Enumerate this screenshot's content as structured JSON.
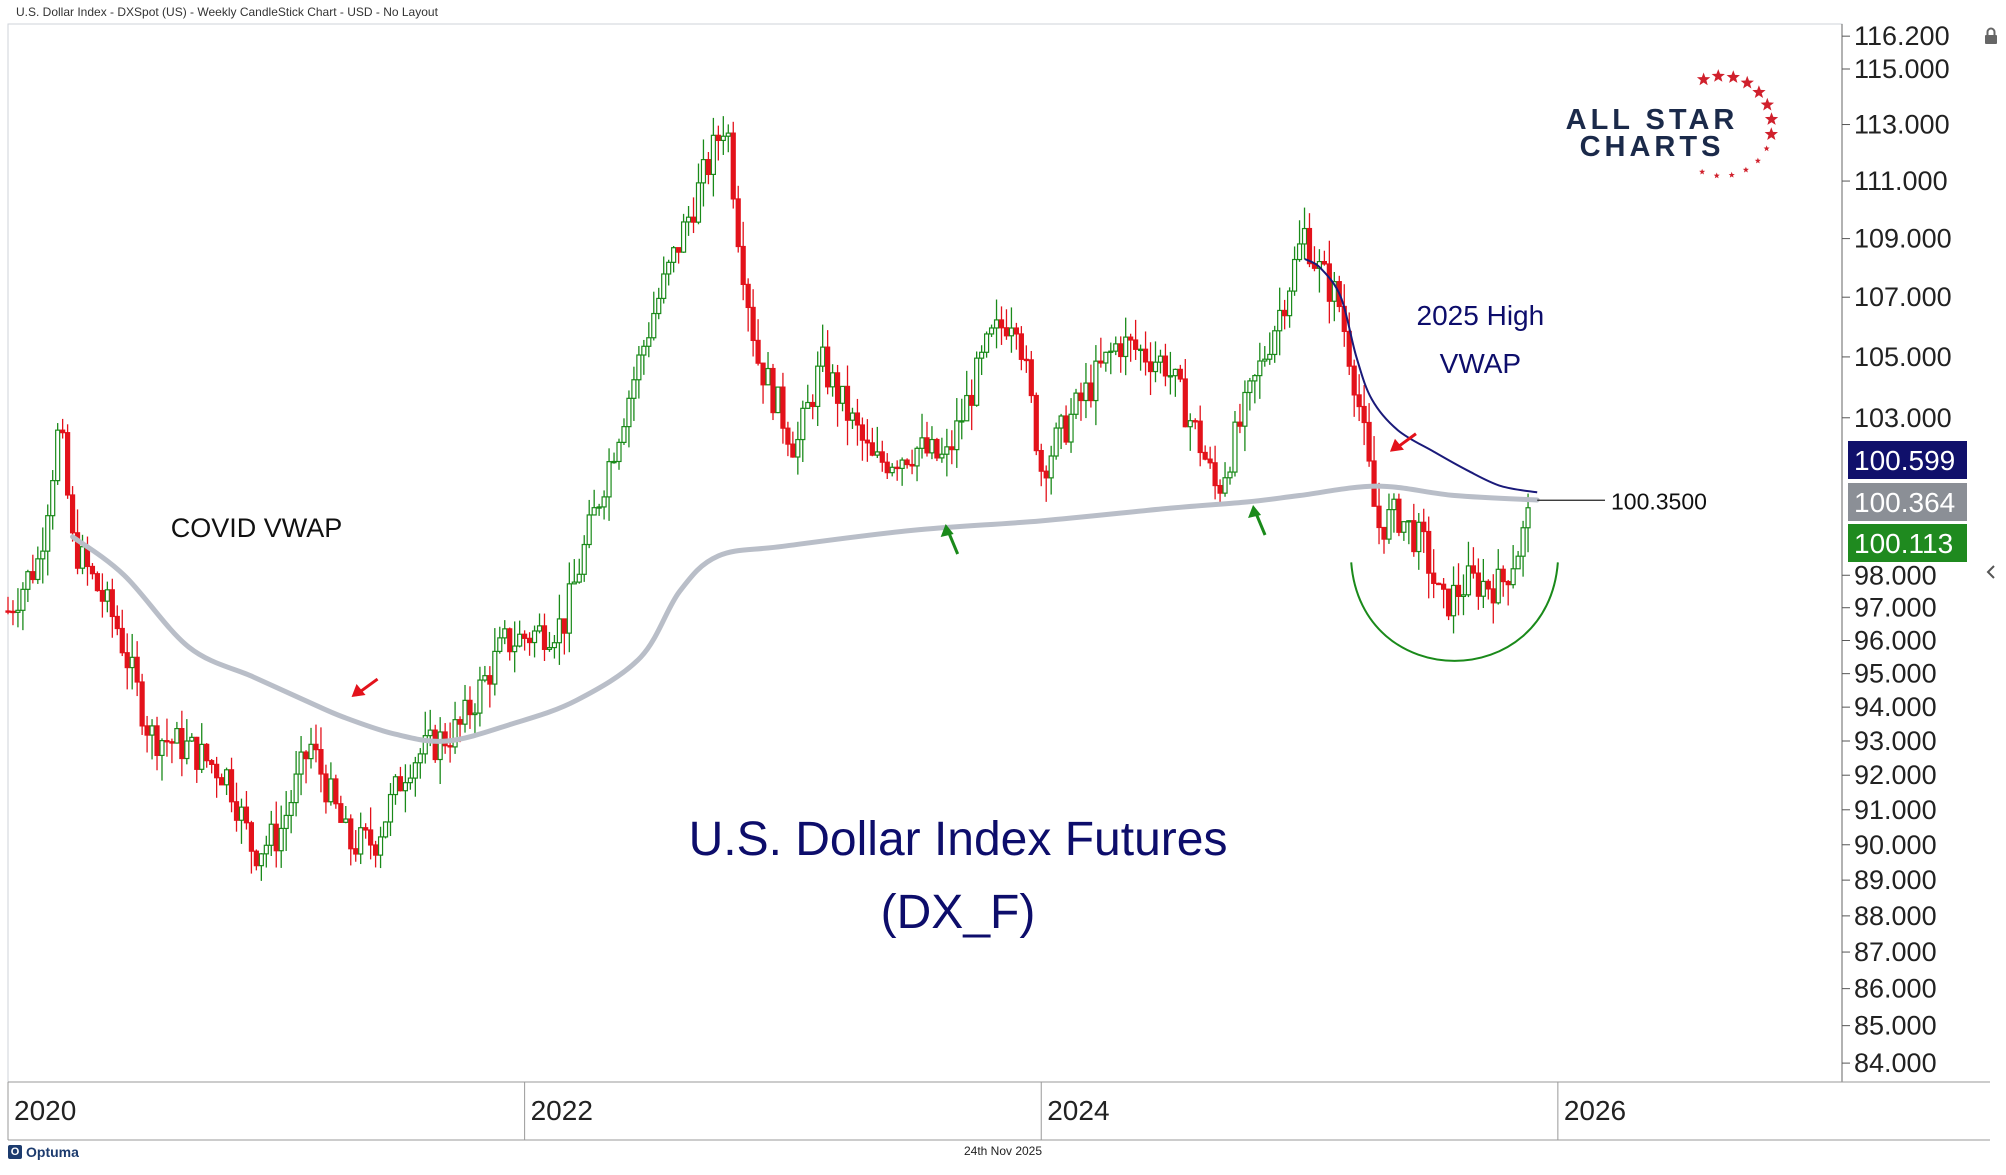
{
  "header": {
    "title": "U.S. Dollar Index - DXSpot (US) - Weekly CandleStick Chart - USD - No Layout"
  },
  "footer": {
    "date": "24th Nov 2025",
    "brand": "Optuma"
  },
  "logo": {
    "line1": "ALL STAR",
    "line2": "CHARTS"
  },
  "icons": {
    "lock": "lock-icon",
    "collapse": "chevron-left-icon",
    "brand": "optuma-logo-icon"
  },
  "colors": {
    "up": "#1a8a1a",
    "down": "#e3121b",
    "covid_vwap": "#b9bec8",
    "high_vwap": "#1a1a7a",
    "title": "#0d0d6b",
    "badge_high": "#10106b",
    "badge_covid": "#8b8f96",
    "badge_price": "#1f8a1f"
  },
  "chart_data": {
    "type": "candlestick",
    "timeframe": "weekly",
    "title": "U.S. Dollar Index Futures",
    "subtitle": "(DX_F)",
    "ylim": [
      83.5,
      116.5
    ],
    "xlim": [
      2020.0,
      2027.1
    ],
    "y_scale": "log",
    "y_ticks": [
      "116.200",
      "115.000",
      "113.000",
      "111.000",
      "109.000",
      "107.000",
      "105.000",
      "103.000",
      "98.000",
      "97.000",
      "96.000",
      "95.000",
      "94.000",
      "93.000",
      "92.000",
      "91.000",
      "90.000",
      "89.000",
      "88.000",
      "87.000",
      "86.000",
      "85.000",
      "84.000"
    ],
    "x_ticks": [
      "2020",
      "2022",
      "2024",
      "2026"
    ],
    "grid": false,
    "legend": "none",
    "price_path": [
      [
        2020.0,
        96.9
      ],
      [
        2020.12,
        98.5
      ],
      [
        2020.2,
        102.8
      ],
      [
        2020.25,
        99.0
      ],
      [
        2020.42,
        96.5
      ],
      [
        2020.55,
        93.2
      ],
      [
        2020.7,
        92.8
      ],
      [
        2020.85,
        92.0
      ],
      [
        2020.95,
        89.8
      ],
      [
        2021.05,
        90.3
      ],
      [
        2021.17,
        92.9
      ],
      [
        2021.32,
        90.0
      ],
      [
        2021.42,
        90.1
      ],
      [
        2021.55,
        92.4
      ],
      [
        2021.75,
        93.4
      ],
      [
        2021.92,
        95.9
      ],
      [
        2022.15,
        96.5
      ],
      [
        2022.35,
        102.2
      ],
      [
        2022.5,
        106.5
      ],
      [
        2022.72,
        111.8
      ],
      [
        2022.78,
        113.3
      ],
      [
        2022.83,
        109.0
      ],
      [
        2022.9,
        105.0
      ],
      [
        2023.05,
        102.0
      ],
      [
        2023.15,
        104.8
      ],
      [
        2023.35,
        101.5
      ],
      [
        2023.52,
        102.0
      ],
      [
        2023.63,
        101.6
      ],
      [
        2023.8,
        105.5
      ],
      [
        2023.9,
        106.6
      ],
      [
        2024.0,
        101.4
      ],
      [
        2024.15,
        103.5
      ],
      [
        2024.3,
        105.5
      ],
      [
        2024.48,
        104.8
      ],
      [
        2024.6,
        102.5
      ],
      [
        2024.68,
        100.6
      ],
      [
        2024.8,
        103.5
      ],
      [
        2024.95,
        107.2
      ],
      [
        2025.02,
        109.2
      ],
      [
        2025.07,
        108.0
      ],
      [
        2025.15,
        106.9
      ],
      [
        2025.22,
        104.0
      ],
      [
        2025.3,
        99.5
      ],
      [
        2025.38,
        99.9
      ],
      [
        2025.48,
        98.9
      ],
      [
        2025.55,
        97.0
      ],
      [
        2025.65,
        97.8
      ],
      [
        2025.78,
        97.7
      ],
      [
        2025.85,
        98.9
      ],
      [
        2025.9,
        100.1
      ]
    ],
    "price_high": 114.8,
    "price_low": 89.2,
    "covid_vwap": [
      [
        2020.25,
        99.2
      ],
      [
        2020.45,
        98.0
      ],
      [
        2020.7,
        95.8
      ],
      [
        2020.95,
        94.9
      ],
      [
        2021.15,
        94.2
      ],
      [
        2021.3,
        93.7
      ],
      [
        2021.5,
        93.2
      ],
      [
        2021.7,
        93.0
      ],
      [
        2021.95,
        93.5
      ],
      [
        2022.2,
        94.2
      ],
      [
        2022.45,
        95.5
      ],
      [
        2022.6,
        97.5
      ],
      [
        2022.75,
        98.6
      ],
      [
        2023.0,
        98.9
      ],
      [
        2023.5,
        99.4
      ],
      [
        2024.0,
        99.7
      ],
      [
        2024.5,
        100.1
      ],
      [
        2024.8,
        100.3
      ],
      [
        2025.0,
        100.5
      ],
      [
        2025.3,
        100.8
      ],
      [
        2025.6,
        100.5
      ],
      [
        2025.92,
        100.36
      ]
    ],
    "high_vwap_2025": [
      [
        2025.02,
        108.3
      ],
      [
        2025.08,
        108.0
      ],
      [
        2025.16,
        107.0
      ],
      [
        2025.22,
        105.0
      ],
      [
        2025.28,
        103.6
      ],
      [
        2025.38,
        102.6
      ],
      [
        2025.52,
        101.9
      ],
      [
        2025.65,
        101.3
      ],
      [
        2025.78,
        100.8
      ],
      [
        2025.92,
        100.6
      ]
    ],
    "price_line": {
      "value": 100.35,
      "label": "100.3500"
    },
    "last_values": [
      {
        "label": "100.599",
        "value": 100.599,
        "series": "2025 High VWAP",
        "color": "#10106b"
      },
      {
        "label": "100.364",
        "value": 100.364,
        "series": "COVID VWAP",
        "color": "#8b8f96"
      },
      {
        "label": "100.113",
        "value": 100.113,
        "series": "Price",
        "color": "#1f8a1f"
      }
    ],
    "annotations": [
      {
        "text": "COVID VWAP",
        "x": 2020.63,
        "y": 99.5
      },
      {
        "text": "2025 High",
        "x": 2025.7,
        "y": 106.4
      },
      {
        "text": "VWAP",
        "x": 2025.7,
        "y": 104.8
      }
    ],
    "arrows": [
      {
        "color": "red",
        "x": 2021.33,
        "y": 94.3,
        "dir": "down-left"
      },
      {
        "color": "green",
        "x": 2023.63,
        "y": 99.6,
        "dir": "up-left"
      },
      {
        "color": "green",
        "x": 2024.82,
        "y": 100.2,
        "dir": "up-left"
      },
      {
        "color": "red",
        "x": 2025.35,
        "y": 101.9,
        "dir": "down-left"
      }
    ],
    "arc": {
      "x_start": 2025.2,
      "x_end": 2026.0,
      "y_top": 98.4,
      "y_bottom": 95.3,
      "color": "green"
    }
  }
}
